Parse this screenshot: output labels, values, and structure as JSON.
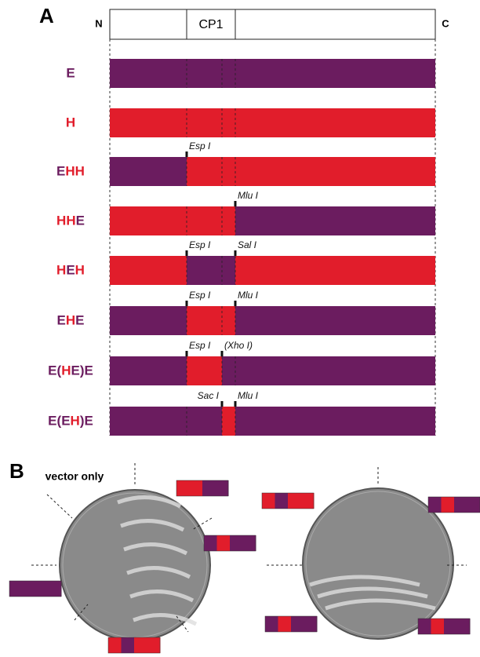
{
  "panel_a": {
    "label": "A",
    "n_terminus": "N",
    "c_terminus": "C",
    "domain": "CP1",
    "rows": [
      {
        "label": "E",
        "sites": []
      },
      {
        "label": "H",
        "sites": []
      },
      {
        "label": "EHH",
        "sites": [
          "Esp I"
        ]
      },
      {
        "label": "HHE",
        "sites": [
          "Mlu I"
        ]
      },
      {
        "label": "HEH",
        "sites": [
          "Esp I",
          "Sal I"
        ]
      },
      {
        "label": "EHE",
        "sites": [
          "Esp I",
          "Mlu I"
        ]
      },
      {
        "label": "E(HE)E",
        "sites": [
          "Esp I",
          "(Xho I)"
        ]
      },
      {
        "label": "E(EH)E",
        "sites": [
          "Sac I",
          "Mlu I"
        ]
      }
    ]
  },
  "panel_b": {
    "label": "B",
    "control": "vector only"
  }
}
